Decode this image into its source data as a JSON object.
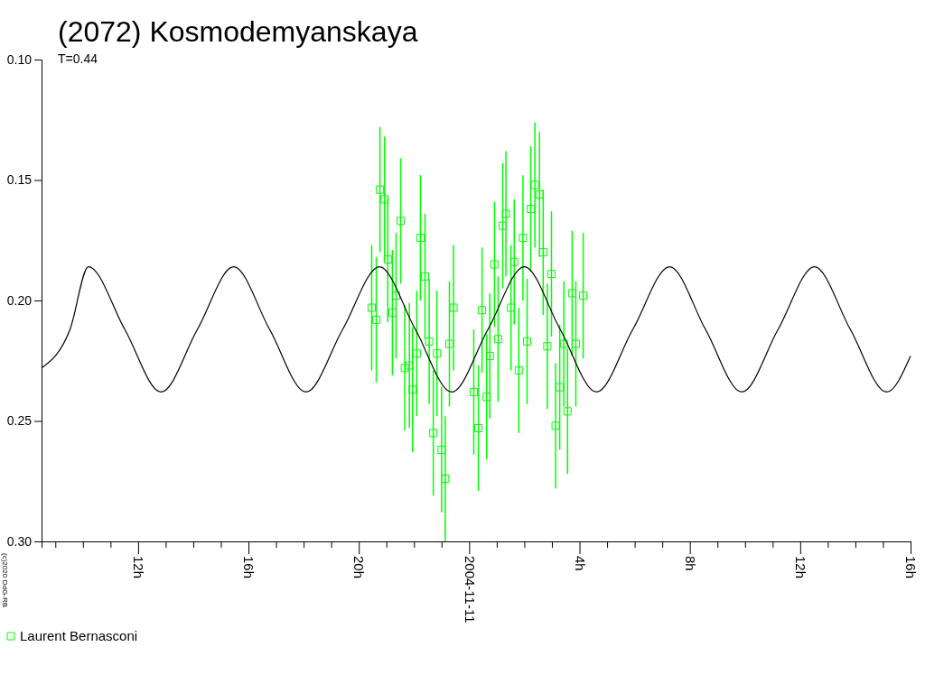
{
  "chart_data": {
    "type": "scatter",
    "title": "(2072) Kosmodemyanskaya",
    "annotations": [
      "T=0.44",
      "(c)2020 OdG-RB"
    ],
    "xlim": [
      "2004-11-10T08:30",
      "2004-11-11T16:00"
    ],
    "xticks": [
      {
        "value": "2004-11-10T09:00",
        "label": null
      },
      {
        "value": "2004-11-10T10:00",
        "label": null
      },
      {
        "value": "2004-11-10T11:00",
        "label": null
      },
      {
        "value": "2004-11-10T12:00",
        "label": "12h"
      },
      {
        "value": "2004-11-10T13:00",
        "label": null
      },
      {
        "value": "2004-11-10T14:00",
        "label": null
      },
      {
        "value": "2004-11-10T15:00",
        "label": null
      },
      {
        "value": "2004-11-10T16:00",
        "label": "16h"
      },
      {
        "value": "2004-11-10T17:00",
        "label": null
      },
      {
        "value": "2004-11-10T18:00",
        "label": null
      },
      {
        "value": "2004-11-10T19:00",
        "label": null
      },
      {
        "value": "2004-11-10T20:00",
        "label": "20h"
      },
      {
        "value": "2004-11-10T21:00",
        "label": null
      },
      {
        "value": "2004-11-10T22:00",
        "label": null
      },
      {
        "value": "2004-11-10T23:00",
        "label": null
      },
      {
        "value": "2004-11-11T00:00",
        "label": "2004-11-11"
      },
      {
        "value": "2004-11-11T01:00",
        "label": null
      },
      {
        "value": "2004-11-11T02:00",
        "label": null
      },
      {
        "value": "2004-11-11T03:00",
        "label": null
      },
      {
        "value": "2004-11-11T04:00",
        "label": "4h"
      },
      {
        "value": "2004-11-11T05:00",
        "label": null
      },
      {
        "value": "2004-11-11T06:00",
        "label": null
      },
      {
        "value": "2004-11-11T07:00",
        "label": null
      },
      {
        "value": "2004-11-11T08:00",
        "label": "8h"
      },
      {
        "value": "2004-11-11T09:00",
        "label": null
      },
      {
        "value": "2004-11-11T10:00",
        "label": null
      },
      {
        "value": "2004-11-11T11:00",
        "label": null
      },
      {
        "value": "2004-11-11T12:00",
        "label": "12h"
      },
      {
        "value": "2004-11-11T13:00",
        "label": null
      },
      {
        "value": "2004-11-11T14:00",
        "label": null
      },
      {
        "value": "2004-11-11T15:00",
        "label": null
      },
      {
        "value": "2004-11-11T16:00",
        "label": "16h"
      }
    ],
    "ylim": [
      0.3,
      0.1
    ],
    "yticks": [
      {
        "value": 0.1,
        "label": "0.10"
      },
      0.15,
      {
        "value": 0.2,
        "label": "0.20"
      },
      0.25,
      {
        "value": 0.3,
        "label": "0.30"
      }
    ],
    "legend": "bottom left",
    "marker": "square",
    "series": [
      {
        "name": "Laurent Bernasconi",
        "color": "#00ff00",
        "x": [
          "2004-11-10T20:28",
          "2004-11-10T20:38",
          "2004-11-10T20:46",
          "2004-11-10T20:56",
          "2004-11-10T21:03",
          "2004-11-10T21:13",
          "2004-11-10T21:21",
          "2004-11-10T21:31",
          "2004-11-10T21:40",
          "2004-11-10T21:50",
          "2004-11-10T21:57",
          "2004-11-10T22:06",
          "2004-11-10T22:14",
          "2004-11-10T22:24",
          "2004-11-10T22:33",
          "2004-11-10T22:42",
          "2004-11-10T22:50",
          "2004-11-10T23:00",
          "2004-11-10T23:08",
          "2004-11-10T23:17",
          "2004-11-10T23:26",
          "2004-11-11T00:10",
          "2004-11-11T00:20",
          "2004-11-11T00:28",
          "2004-11-11T00:38",
          "2004-11-11T00:45",
          "2004-11-11T00:55",
          "2004-11-11T01:03",
          "2004-11-11T01:13",
          "2004-11-11T01:20",
          "2004-11-11T01:31",
          "2004-11-11T01:38",
          "2004-11-11T01:48",
          "2004-11-11T01:57",
          "2004-11-11T02:06",
          "2004-11-11T02:14",
          "2004-11-11T02:23",
          "2004-11-11T02:33",
          "2004-11-11T02:41",
          "2004-11-11T02:50",
          "2004-11-11T02:59",
          "2004-11-11T03:08",
          "2004-11-11T03:17",
          "2004-11-11T03:26",
          "2004-11-11T03:34",
          "2004-11-11T03:44",
          "2004-11-11T03:52",
          "2004-11-11T04:08"
        ],
        "values": [
          0.203,
          0.208,
          0.154,
          0.158,
          0.183,
          0.205,
          0.198,
          0.167,
          0.228,
          0.227,
          0.237,
          0.222,
          0.174,
          0.19,
          0.217,
          0.255,
          0.222,
          0.262,
          0.274,
          0.218,
          0.203,
          0.238,
          0.253,
          0.204,
          0.24,
          0.223,
          0.185,
          0.216,
          0.169,
          0.164,
          0.203,
          0.184,
          0.229,
          0.174,
          0.217,
          0.162,
          0.152,
          0.156,
          0.18,
          0.219,
          0.189,
          0.252,
          0.236,
          0.218,
          0.246,
          0.197,
          0.218,
          0.198
        ],
        "errors": [
          0.026,
          0.026,
          0.026,
          0.026,
          0.026,
          0.026,
          0.026,
          0.026,
          0.026,
          0.026,
          0.026,
          0.026,
          0.026,
          0.026,
          0.026,
          0.026,
          0.026,
          0.026,
          0.026,
          0.026,
          0.026,
          0.026,
          0.026,
          0.026,
          0.026,
          0.026,
          0.026,
          0.026,
          0.026,
          0.026,
          0.026,
          0.026,
          0.026,
          0.026,
          0.026,
          0.026,
          0.026,
          0.026,
          0.026,
          0.026,
          0.026,
          0.026,
          0.026,
          0.026,
          0.026,
          0.026,
          0.026,
          0.026
        ]
      },
      {
        "type": "line",
        "color": "#000000",
        "marker": "none",
        "x": [
          "2004-11-10T08:30",
          "2004-11-10T09:32",
          "2004-11-10T10:12",
          "2004-11-10T11:31",
          "2004-11-10T12:50",
          "2004-11-10T14:09",
          "2004-11-10T15:28",
          "2004-11-10T16:46",
          "2004-11-10T18:05",
          "2004-11-10T19:25",
          "2004-11-10T20:45",
          "2004-11-10T22:03",
          "2004-11-10T23:22",
          "2004-11-11T00:41",
          "2004-11-11T02:00",
          "2004-11-11T03:18",
          "2004-11-11T04:37",
          "2004-11-11T05:56",
          "2004-11-11T07:16",
          "2004-11-11T08:34",
          "2004-11-11T09:53",
          "2004-11-11T11:12",
          "2004-11-11T12:31",
          "2004-11-11T13:49",
          "2004-11-11T15:08",
          "2004-11-11T16:00"
        ],
        "values": [
          0.228,
          0.212,
          0.186,
          0.212,
          0.238,
          0.212,
          0.186,
          0.212,
          0.238,
          0.212,
          0.186,
          0.212,
          0.238,
          0.212,
          0.186,
          0.212,
          0.238,
          0.212,
          0.186,
          0.212,
          0.238,
          0.212,
          0.186,
          0.212,
          0.238,
          0.223
        ]
      }
    ]
  }
}
